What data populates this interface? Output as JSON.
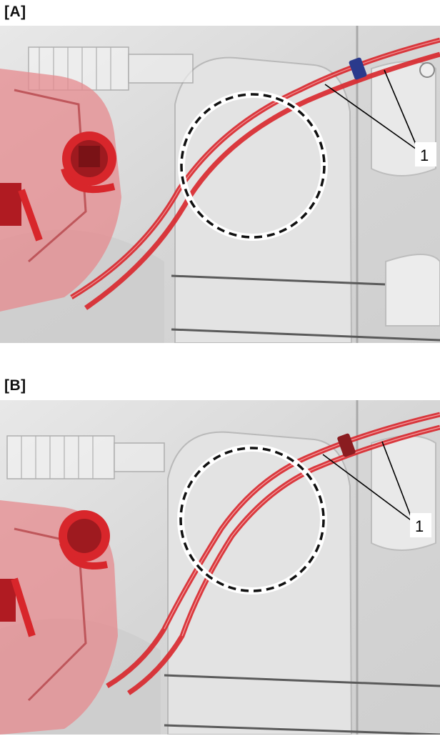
{
  "panels": [
    {
      "label": "[A]",
      "callout": "1",
      "variant": "routed-away-from-pillar"
    },
    {
      "label": "[B]",
      "callout": "1",
      "variant": "routed-across-pillar"
    }
  ],
  "colors": {
    "cable": "#d8262b",
    "cable_highlight": "#ffd0d0",
    "latch": "#c23a3e",
    "panel_metal": "#dcdcdc",
    "clip_A": "#2a3a8c",
    "clip_B": "#8a1c20",
    "circle_dash": "#111111"
  },
  "icons": {
    "latch_assembly": "door-latch-icon",
    "cable_clip": "cable-clip-icon",
    "inspection_circle": "dashed-circle-icon"
  }
}
